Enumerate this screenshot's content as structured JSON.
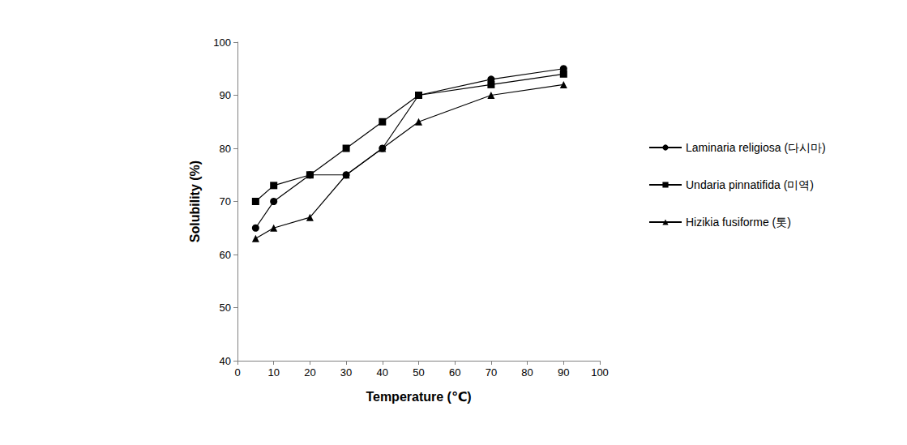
{
  "chart_data": {
    "type": "line",
    "x_label": "Temperature (℃)",
    "y_label": "Solubility (%)",
    "x": [
      5,
      10,
      20,
      30,
      40,
      50,
      70,
      90
    ],
    "series": [
      {
        "name": "Laminaria religiosa (다시마)",
        "color": "#000000",
        "marker": "circle",
        "values": [
          65,
          70,
          75,
          75,
          80,
          90,
          93,
          95
        ]
      },
      {
        "name": "Undaria pinnatifida (미역)",
        "color": "#000000",
        "marker": "square",
        "values": [
          70,
          73,
          75,
          80,
          85,
          90,
          92,
          94
        ]
      },
      {
        "name": "Hizikia fusiforme (톳)",
        "color": "#000000",
        "marker": "triangle",
        "values": [
          63,
          65,
          67,
          75,
          80,
          85,
          90,
          92
        ]
      }
    ],
    "xlim": [
      0,
      100
    ],
    "xticks": [
      0,
      10,
      20,
      30,
      40,
      50,
      60,
      70,
      80,
      90,
      100
    ],
    "ylim": [
      40,
      100
    ],
    "yticks": [
      40,
      50,
      60,
      70,
      80,
      90,
      100
    ],
    "grid": false,
    "legend": "right"
  }
}
